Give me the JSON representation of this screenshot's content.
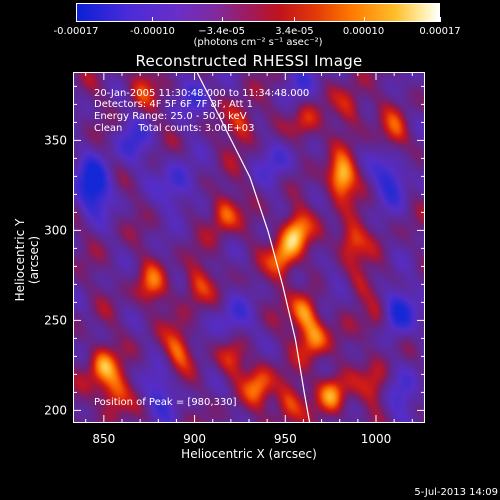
{
  "chart_data": {
    "type": "heatmap",
    "title": "Reconstructed RHESSI Image",
    "xlabel": "Heliocentric X (arcsec)",
    "ylabel": "Heliocentric Y (arcsec)",
    "xlim": [
      833,
      1027
    ],
    "ylim": [
      193,
      388
    ],
    "x_ticks": [
      850,
      900,
      950,
      1000
    ],
    "y_ticks": [
      200,
      250,
      300,
      350
    ],
    "colorbar": {
      "ticks": [
        "-0.00017",
        "-0.00010",
        "−3.4e-05",
        "3.4e-05",
        "0.00010",
        "0.00017"
      ],
      "units": "(photons cm⁻² s⁻¹ asec⁻²)",
      "range": [
        -0.00017,
        0.00017
      ]
    },
    "annotation": {
      "time": "20-Jan-2005 11:30:48.000 to 11:34:48.000",
      "detectors": "Detectors: 4F 5F 6F 7F 8F, Att 1",
      "energy": "Energy Range: 25.0 - 50.0 keV",
      "clean": "Clean     Total counts: 3.00E+03",
      "peak": "Position of Peak = [980,330]"
    },
    "limb_curve": [
      [
        901,
        388
      ],
      [
        915,
        360
      ],
      [
        930,
        330
      ],
      [
        940,
        300
      ],
      [
        948,
        270
      ],
      [
        955,
        240
      ],
      [
        960,
        210
      ],
      [
        963,
        193
      ]
    ],
    "features": [
      {
        "x": 980,
        "y": 330,
        "v": 1.0
      },
      {
        "x": 955,
        "y": 300,
        "v": 0.85
      },
      {
        "x": 948,
        "y": 285,
        "v": 0.75
      },
      {
        "x": 985,
        "y": 295,
        "v": 0.7
      },
      {
        "x": 960,
        "y": 255,
        "v": 0.8
      },
      {
        "x": 965,
        "y": 240,
        "v": 0.7
      },
      {
        "x": 1000,
        "y": 250,
        "v": 0.55
      },
      {
        "x": 990,
        "y": 270,
        "v": 0.5
      },
      {
        "x": 925,
        "y": 360,
        "v": 0.6
      },
      {
        "x": 915,
        "y": 310,
        "v": 0.65
      },
      {
        "x": 900,
        "y": 270,
        "v": 0.55
      },
      {
        "x": 890,
        "y": 235,
        "v": 0.6
      },
      {
        "x": 875,
        "y": 270,
        "v": 0.55
      },
      {
        "x": 848,
        "y": 225,
        "v": 0.75
      },
      {
        "x": 855,
        "y": 210,
        "v": 0.7
      },
      {
        "x": 935,
        "y": 215,
        "v": 0.65
      },
      {
        "x": 950,
        "y": 205,
        "v": 0.6
      },
      {
        "x": 975,
        "y": 210,
        "v": 0.8
      },
      {
        "x": 1000,
        "y": 215,
        "v": 0.55
      },
      {
        "x": 1010,
        "y": 355,
        "v": 0.5
      },
      {
        "x": 960,
        "y": 360,
        "v": 0.55
      },
      {
        "x": 870,
        "y": 380,
        "v": 0.45
      },
      {
        "x": 985,
        "y": 370,
        "v": 0.5
      },
      {
        "x": 920,
        "y": 230,
        "v": 0.5
      },
      {
        "x": 843,
        "y": 325,
        "v": -1.0
      },
      {
        "x": 890,
        "y": 325,
        "v": -0.6
      },
      {
        "x": 865,
        "y": 350,
        "v": -0.5
      },
      {
        "x": 900,
        "y": 375,
        "v": -0.45
      },
      {
        "x": 1010,
        "y": 255,
        "v": -0.9
      },
      {
        "x": 1008,
        "y": 330,
        "v": -0.7
      },
      {
        "x": 920,
        "y": 250,
        "v": -0.5
      },
      {
        "x": 1015,
        "y": 210,
        "v": -0.55
      },
      {
        "x": 880,
        "y": 210,
        "v": -0.5
      },
      {
        "x": 945,
        "y": 340,
        "v": -0.45
      },
      {
        "x": 975,
        "y": 270,
        "v": -0.35
      },
      {
        "x": 960,
        "y": 385,
        "v": -0.4
      }
    ]
  },
  "footer": "5-Jul-2013 14:09"
}
